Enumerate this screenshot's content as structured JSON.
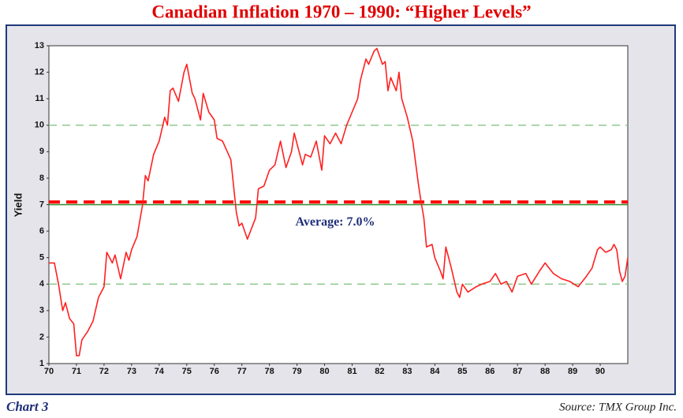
{
  "chart_data": {
    "type": "line",
    "title": "Canadian Inflation 1970 – 1990: “Higher Levels”",
    "ylabel": "Yield",
    "footer": "Chart 3",
    "source": "Source: TMX Group Inc.",
    "x": [
      70.0,
      70.2,
      70.35,
      70.5,
      70.6,
      70.75,
      70.9,
      71.0,
      71.1,
      71.2,
      71.4,
      71.6,
      71.8,
      72.0,
      72.1,
      72.3,
      72.4,
      72.6,
      72.8,
      72.9,
      73.0,
      73.2,
      73.4,
      73.5,
      73.6,
      73.8,
      74.0,
      74.2,
      74.3,
      74.4,
      74.5,
      74.7,
      74.9,
      75.0,
      75.2,
      75.3,
      75.5,
      75.6,
      75.8,
      76.0,
      76.1,
      76.3,
      76.6,
      76.8,
      76.9,
      77.0,
      77.2,
      77.5,
      77.6,
      77.8,
      78.0,
      78.2,
      78.4,
      78.6,
      78.8,
      78.9,
      79.0,
      79.2,
      79.3,
      79.5,
      79.7,
      79.9,
      80.0,
      80.2,
      80.4,
      80.6,
      80.8,
      81.0,
      81.2,
      81.3,
      81.5,
      81.6,
      81.8,
      81.9,
      82.1,
      82.2,
      82.3,
      82.4,
      82.6,
      82.7,
      82.8,
      83.0,
      83.2,
      83.4,
      83.5,
      83.6,
      83.7,
      83.9,
      84.0,
      84.2,
      84.3,
      84.4,
      84.6,
      84.8,
      84.9,
      85.0,
      85.2,
      85.5,
      85.7,
      86.0,
      86.2,
      86.4,
      86.6,
      86.8,
      87.0,
      87.3,
      87.5,
      87.8,
      88.0,
      88.3,
      88.6,
      88.9,
      89.2,
      89.5,
      89.7,
      89.9,
      90.0,
      90.2,
      90.4,
      90.5,
      90.6,
      90.7,
      90.8,
      90.9,
      91.0
    ],
    "series": [
      {
        "name": "Yield",
        "color": "#ff2020",
        "values": [
          4.8,
          4.8,
          4.0,
          3.0,
          3.3,
          2.7,
          2.5,
          1.3,
          1.3,
          1.9,
          2.2,
          2.6,
          3.5,
          3.9,
          5.2,
          4.8,
          5.1,
          4.2,
          5.2,
          4.9,
          5.3,
          5.8,
          7.0,
          8.1,
          7.9,
          8.9,
          9.4,
          10.3,
          10.0,
          11.3,
          11.4,
          10.9,
          12.0,
          12.3,
          11.2,
          11.0,
          10.2,
          11.2,
          10.5,
          10.2,
          9.5,
          9.4,
          8.7,
          6.7,
          6.2,
          6.3,
          5.7,
          6.5,
          7.6,
          7.7,
          8.3,
          8.5,
          9.4,
          8.4,
          9.0,
          9.7,
          9.3,
          8.5,
          8.9,
          8.8,
          9.4,
          8.3,
          9.6,
          9.3,
          9.7,
          9.3,
          10.0,
          10.5,
          11.0,
          11.7,
          12.5,
          12.3,
          12.8,
          12.9,
          12.3,
          12.4,
          11.3,
          11.8,
          11.3,
          12.0,
          11.0,
          10.3,
          9.4,
          7.8,
          7.1,
          6.5,
          5.4,
          5.5,
          5.0,
          4.5,
          4.2,
          5.4,
          4.6,
          3.7,
          3.5,
          4.0,
          3.7,
          3.9,
          4.0,
          4.1,
          4.4,
          4.0,
          4.1,
          3.7,
          4.3,
          4.4,
          4.0,
          4.5,
          4.8,
          4.4,
          4.2,
          4.1,
          3.9,
          4.3,
          4.6,
          5.3,
          5.4,
          5.2,
          5.3,
          5.5,
          5.3,
          4.5,
          4.1,
          4.3,
          5.0
        ]
      }
    ],
    "xlim": [
      70,
      91
    ],
    "xticks": [
      70,
      71,
      72,
      73,
      74,
      75,
      76,
      77,
      78,
      79,
      80,
      81,
      82,
      83,
      84,
      85,
      86,
      87,
      88,
      89,
      90
    ],
    "ylim": [
      1,
      13
    ],
    "yticks": [
      1,
      2,
      3,
      4,
      5,
      6,
      7,
      8,
      9,
      10,
      11,
      12,
      13
    ],
    "grid_lines": [
      4,
      10
    ],
    "grid_color": "#8fc98f",
    "reference_lines": [
      {
        "value": 7.1,
        "color": "#ff0000",
        "dashed": true
      },
      {
        "value": 7.0,
        "color": "#2e8b2e",
        "dashed": false,
        "label": "Average: 7.0%"
      }
    ]
  }
}
